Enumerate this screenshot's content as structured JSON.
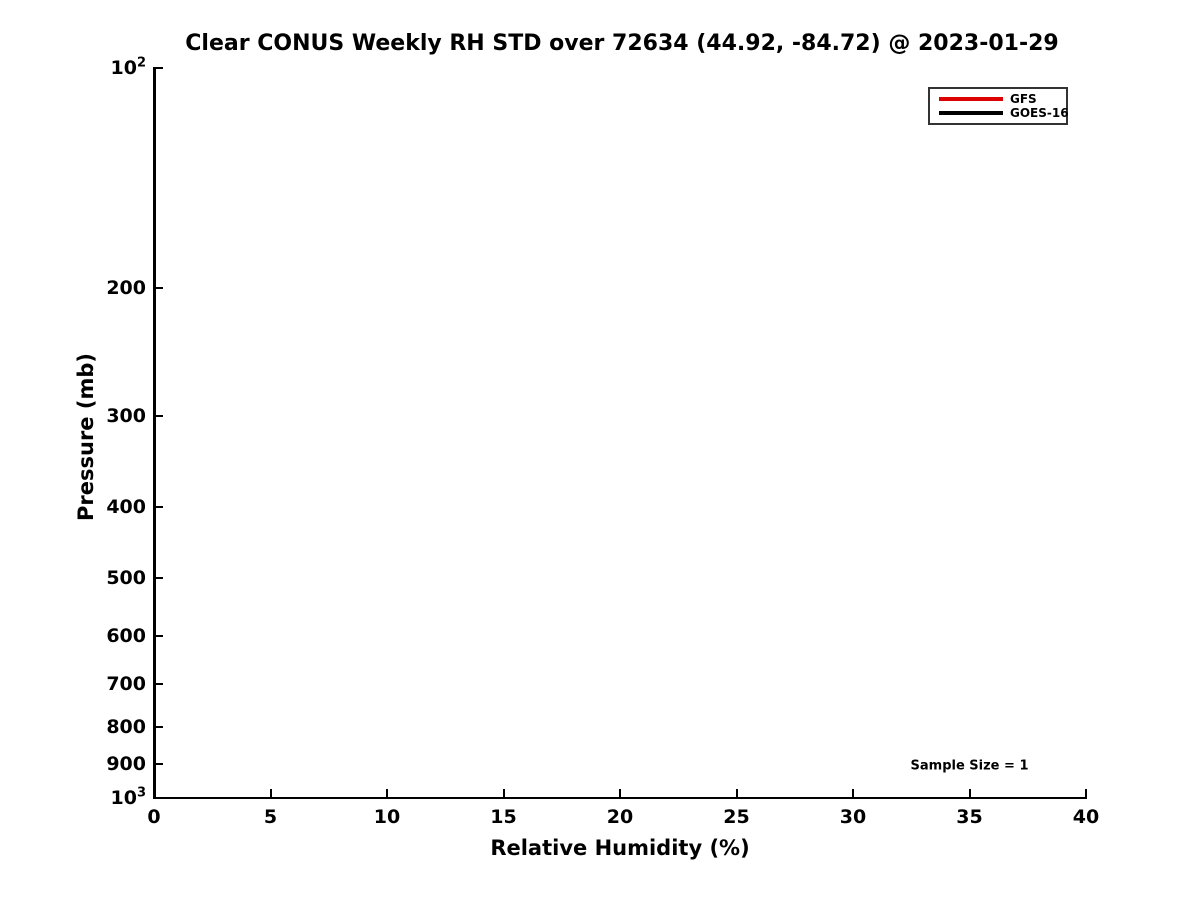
{
  "chart_data": {
    "type": "line",
    "title": "Clear CONUS Weekly RH STD over 72634 (44.92, -84.72) @ 2023-01-29",
    "xlabel": "Relative Humidity (%)",
    "ylabel": "Pressure (mb)",
    "xlim": [
      0,
      40
    ],
    "ylim": [
      100,
      1000
    ],
    "y_scale": "log",
    "y_direction": "pressure-increases-downward",
    "grid": false,
    "x_ticks": [
      0,
      5,
      10,
      15,
      20,
      25,
      30,
      35,
      40
    ],
    "y_ticks": [
      {
        "value": 100,
        "label": "10^2"
      },
      {
        "value": 200,
        "label": "200"
      },
      {
        "value": 300,
        "label": "300"
      },
      {
        "value": 400,
        "label": "400"
      },
      {
        "value": 500,
        "label": "500"
      },
      {
        "value": 600,
        "label": "600"
      },
      {
        "value": 700,
        "label": "700"
      },
      {
        "value": 800,
        "label": "800"
      },
      {
        "value": 900,
        "label": "900"
      },
      {
        "value": 1000,
        "label": "10^3"
      }
    ],
    "legend": {
      "position": "top-right",
      "border_color": "#333333"
    },
    "series": [
      {
        "name": "GFS",
        "color": "#dd0000",
        "points": []
      },
      {
        "name": "GOES-16",
        "color": "#000000",
        "points": []
      }
    ],
    "annotation": {
      "text": "Sample Size = 1",
      "x": 35,
      "pressure": 905
    }
  }
}
